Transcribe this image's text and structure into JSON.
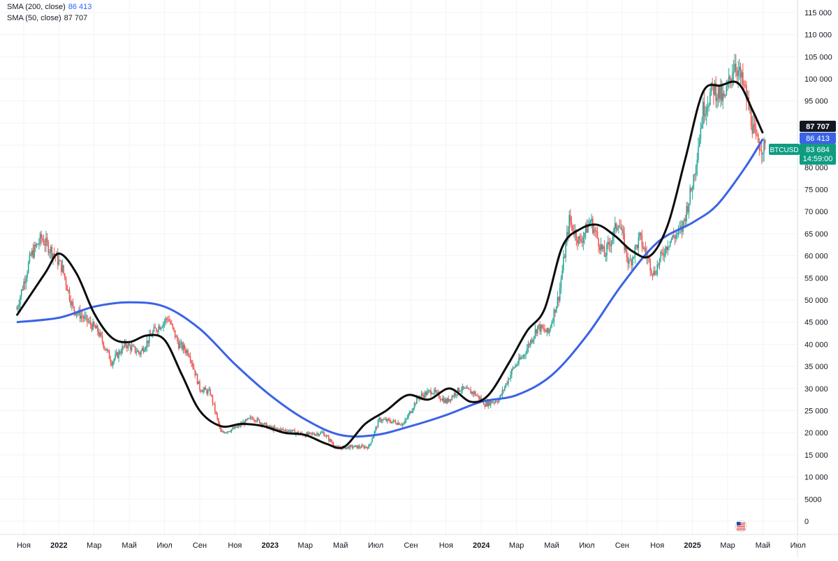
{
  "legend": {
    "sma200_label": "SMA (200, close)",
    "sma200_value": "86 413",
    "sma50_label": "SMA (50, close)",
    "sma50_value": "87 707"
  },
  "colors": {
    "sma200": "#3b63e6",
    "sma50": "#0b0b0b",
    "up": "#26a69a",
    "down": "#ef5350",
    "badge_black": "#131722",
    "badge_blue": "#3b63e6",
    "badge_green": "#0f9d82",
    "grid": "#f0f3fa",
    "axis_text": "#131722"
  },
  "badges": {
    "sma50": "87 707",
    "sma200": "86 413",
    "symbol": "BTCUSD",
    "price": "83 684",
    "countdown": "14:59:00"
  },
  "chart_data": {
    "type": "line",
    "symbol": "BTCUSD",
    "x_axis": {
      "labels": [
        "Ноя",
        "2022",
        "Мар",
        "Май",
        "Июл",
        "Сен",
        "Ноя",
        "2023",
        "Мар",
        "Май",
        "Июл",
        "Сен",
        "Ноя",
        "2024",
        "Мар",
        "Май",
        "Июл",
        "Сен",
        "Ноя",
        "2025",
        "Мар",
        "Май",
        "Июл"
      ],
      "bold": [
        "2022",
        "2023",
        "2024",
        "2025"
      ],
      "range_months": [
        0,
        20.5
      ]
    },
    "y_axis": {
      "ticks": [
        0,
        5000,
        10000,
        15000,
        20000,
        25000,
        30000,
        35000,
        40000,
        45000,
        50000,
        55000,
        60000,
        65000,
        70000,
        75000,
        80000,
        85000,
        90000,
        95000,
        100000,
        105000,
        110000,
        115000
      ],
      "tick_labels": [
        "0",
        "5000",
        "10 000",
        "15 000",
        "20 000",
        "25 000",
        "30 000",
        "35 000",
        "40 000",
        "45 000",
        "50 000",
        "55 000",
        "60 000",
        "65 000",
        "70 000",
        "75 000",
        "80 000",
        "85 000",
        "90 000",
        "95 000",
        "100 000",
        "105 000",
        "110 000",
        "115 000"
      ],
      "range": [
        0,
        115000
      ]
    },
    "price_points": [
      [
        -0.2,
        48000
      ],
      [
        0.2,
        60000
      ],
      [
        0.5,
        64000
      ],
      [
        0.9,
        60000
      ],
      [
        1.1,
        57000
      ],
      [
        1.4,
        48000
      ],
      [
        1.7,
        46000
      ],
      [
        2.1,
        43000
      ],
      [
        2.5,
        36000
      ],
      [
        2.9,
        40000
      ],
      [
        3.3,
        38000
      ],
      [
        3.7,
        43000
      ],
      [
        4.1,
        46000
      ],
      [
        4.4,
        40000
      ],
      [
        4.7,
        38000
      ],
      [
        5.0,
        30000
      ],
      [
        5.3,
        29000
      ],
      [
        5.6,
        20000
      ],
      [
        6.0,
        21000
      ],
      [
        6.5,
        23500
      ],
      [
        7.0,
        21000
      ],
      [
        7.5,
        20500
      ],
      [
        8.0,
        19500
      ],
      [
        8.5,
        20000
      ],
      [
        8.9,
        16500
      ],
      [
        9.3,
        16800
      ],
      [
        9.8,
        16800
      ],
      [
        10.1,
        23000
      ],
      [
        10.5,
        22500
      ],
      [
        10.8,
        22000
      ],
      [
        11.2,
        28000
      ],
      [
        11.6,
        29500
      ],
      [
        12.0,
        27000
      ],
      [
        12.4,
        30000
      ],
      [
        12.8,
        29000
      ],
      [
        13.1,
        26500
      ],
      [
        13.5,
        27500
      ],
      [
        13.9,
        34500
      ],
      [
        14.2,
        37500
      ],
      [
        14.6,
        44000
      ],
      [
        14.9,
        42500
      ],
      [
        15.2,
        51000
      ],
      [
        15.5,
        68000
      ],
      [
        15.8,
        63000
      ],
      [
        16.1,
        68000
      ],
      [
        16.5,
        60000
      ],
      [
        16.9,
        68000
      ],
      [
        17.2,
        58000
      ],
      [
        17.5,
        64000
      ],
      [
        17.9,
        56000
      ],
      [
        18.3,
        63000
      ],
      [
        18.7,
        66000
      ],
      [
        19.0,
        76000
      ],
      [
        19.3,
        93000
      ],
      [
        19.6,
        98000
      ],
      [
        19.9,
        95000
      ],
      [
        20.2,
        104000
      ],
      [
        20.5,
        97000
      ],
      [
        20.8,
        86000
      ],
      [
        21.1,
        84000
      ]
    ],
    "series": [
      {
        "name": "SMA (200, close)",
        "points": [
          [
            -0.2,
            45000
          ],
          [
            1.0,
            46000
          ],
          [
            2.0,
            48500
          ],
          [
            3.0,
            49500
          ],
          [
            4.0,
            48500
          ],
          [
            5.0,
            43500
          ],
          [
            6.0,
            35500
          ],
          [
            7.0,
            28500
          ],
          [
            8.0,
            23000
          ],
          [
            9.0,
            19500
          ],
          [
            10.0,
            19500
          ],
          [
            11.0,
            21500
          ],
          [
            12.0,
            24000
          ],
          [
            13.0,
            27000
          ],
          [
            14.0,
            28500
          ],
          [
            15.0,
            33000
          ],
          [
            16.0,
            42000
          ],
          [
            17.0,
            53500
          ],
          [
            18.0,
            63000
          ],
          [
            19.0,
            67500
          ],
          [
            19.7,
            71500
          ],
          [
            20.5,
            80000
          ],
          [
            21.0,
            86413
          ]
        ]
      },
      {
        "name": "SMA (50, close)",
        "points": [
          [
            -0.2,
            46500
          ],
          [
            0.6,
            56000
          ],
          [
            1.0,
            60500
          ],
          [
            1.5,
            56000
          ],
          [
            2.0,
            47000
          ],
          [
            2.5,
            41500
          ],
          [
            3.0,
            40500
          ],
          [
            3.5,
            42000
          ],
          [
            4.0,
            41000
          ],
          [
            4.5,
            33000
          ],
          [
            5.0,
            25000
          ],
          [
            5.6,
            21500
          ],
          [
            6.2,
            22000
          ],
          [
            6.8,
            21500
          ],
          [
            7.4,
            20000
          ],
          [
            8.0,
            19500
          ],
          [
            8.6,
            17500
          ],
          [
            9.1,
            16800
          ],
          [
            9.7,
            22000
          ],
          [
            10.3,
            25000
          ],
          [
            10.9,
            28500
          ],
          [
            11.5,
            27500
          ],
          [
            12.1,
            30000
          ],
          [
            12.7,
            27000
          ],
          [
            13.2,
            28500
          ],
          [
            13.8,
            36000
          ],
          [
            14.3,
            43000
          ],
          [
            14.8,
            48000
          ],
          [
            15.3,
            62000
          ],
          [
            15.8,
            66000
          ],
          [
            16.3,
            67000
          ],
          [
            16.8,
            64500
          ],
          [
            17.3,
            61000
          ],
          [
            17.8,
            60000
          ],
          [
            18.3,
            67000
          ],
          [
            18.8,
            82000
          ],
          [
            19.3,
            97000
          ],
          [
            19.8,
            98500
          ],
          [
            20.3,
            99000
          ],
          [
            20.7,
            93000
          ],
          [
            21.0,
            87707
          ]
        ]
      }
    ],
    "last_price": 83684,
    "countdown": "14:59:00"
  }
}
